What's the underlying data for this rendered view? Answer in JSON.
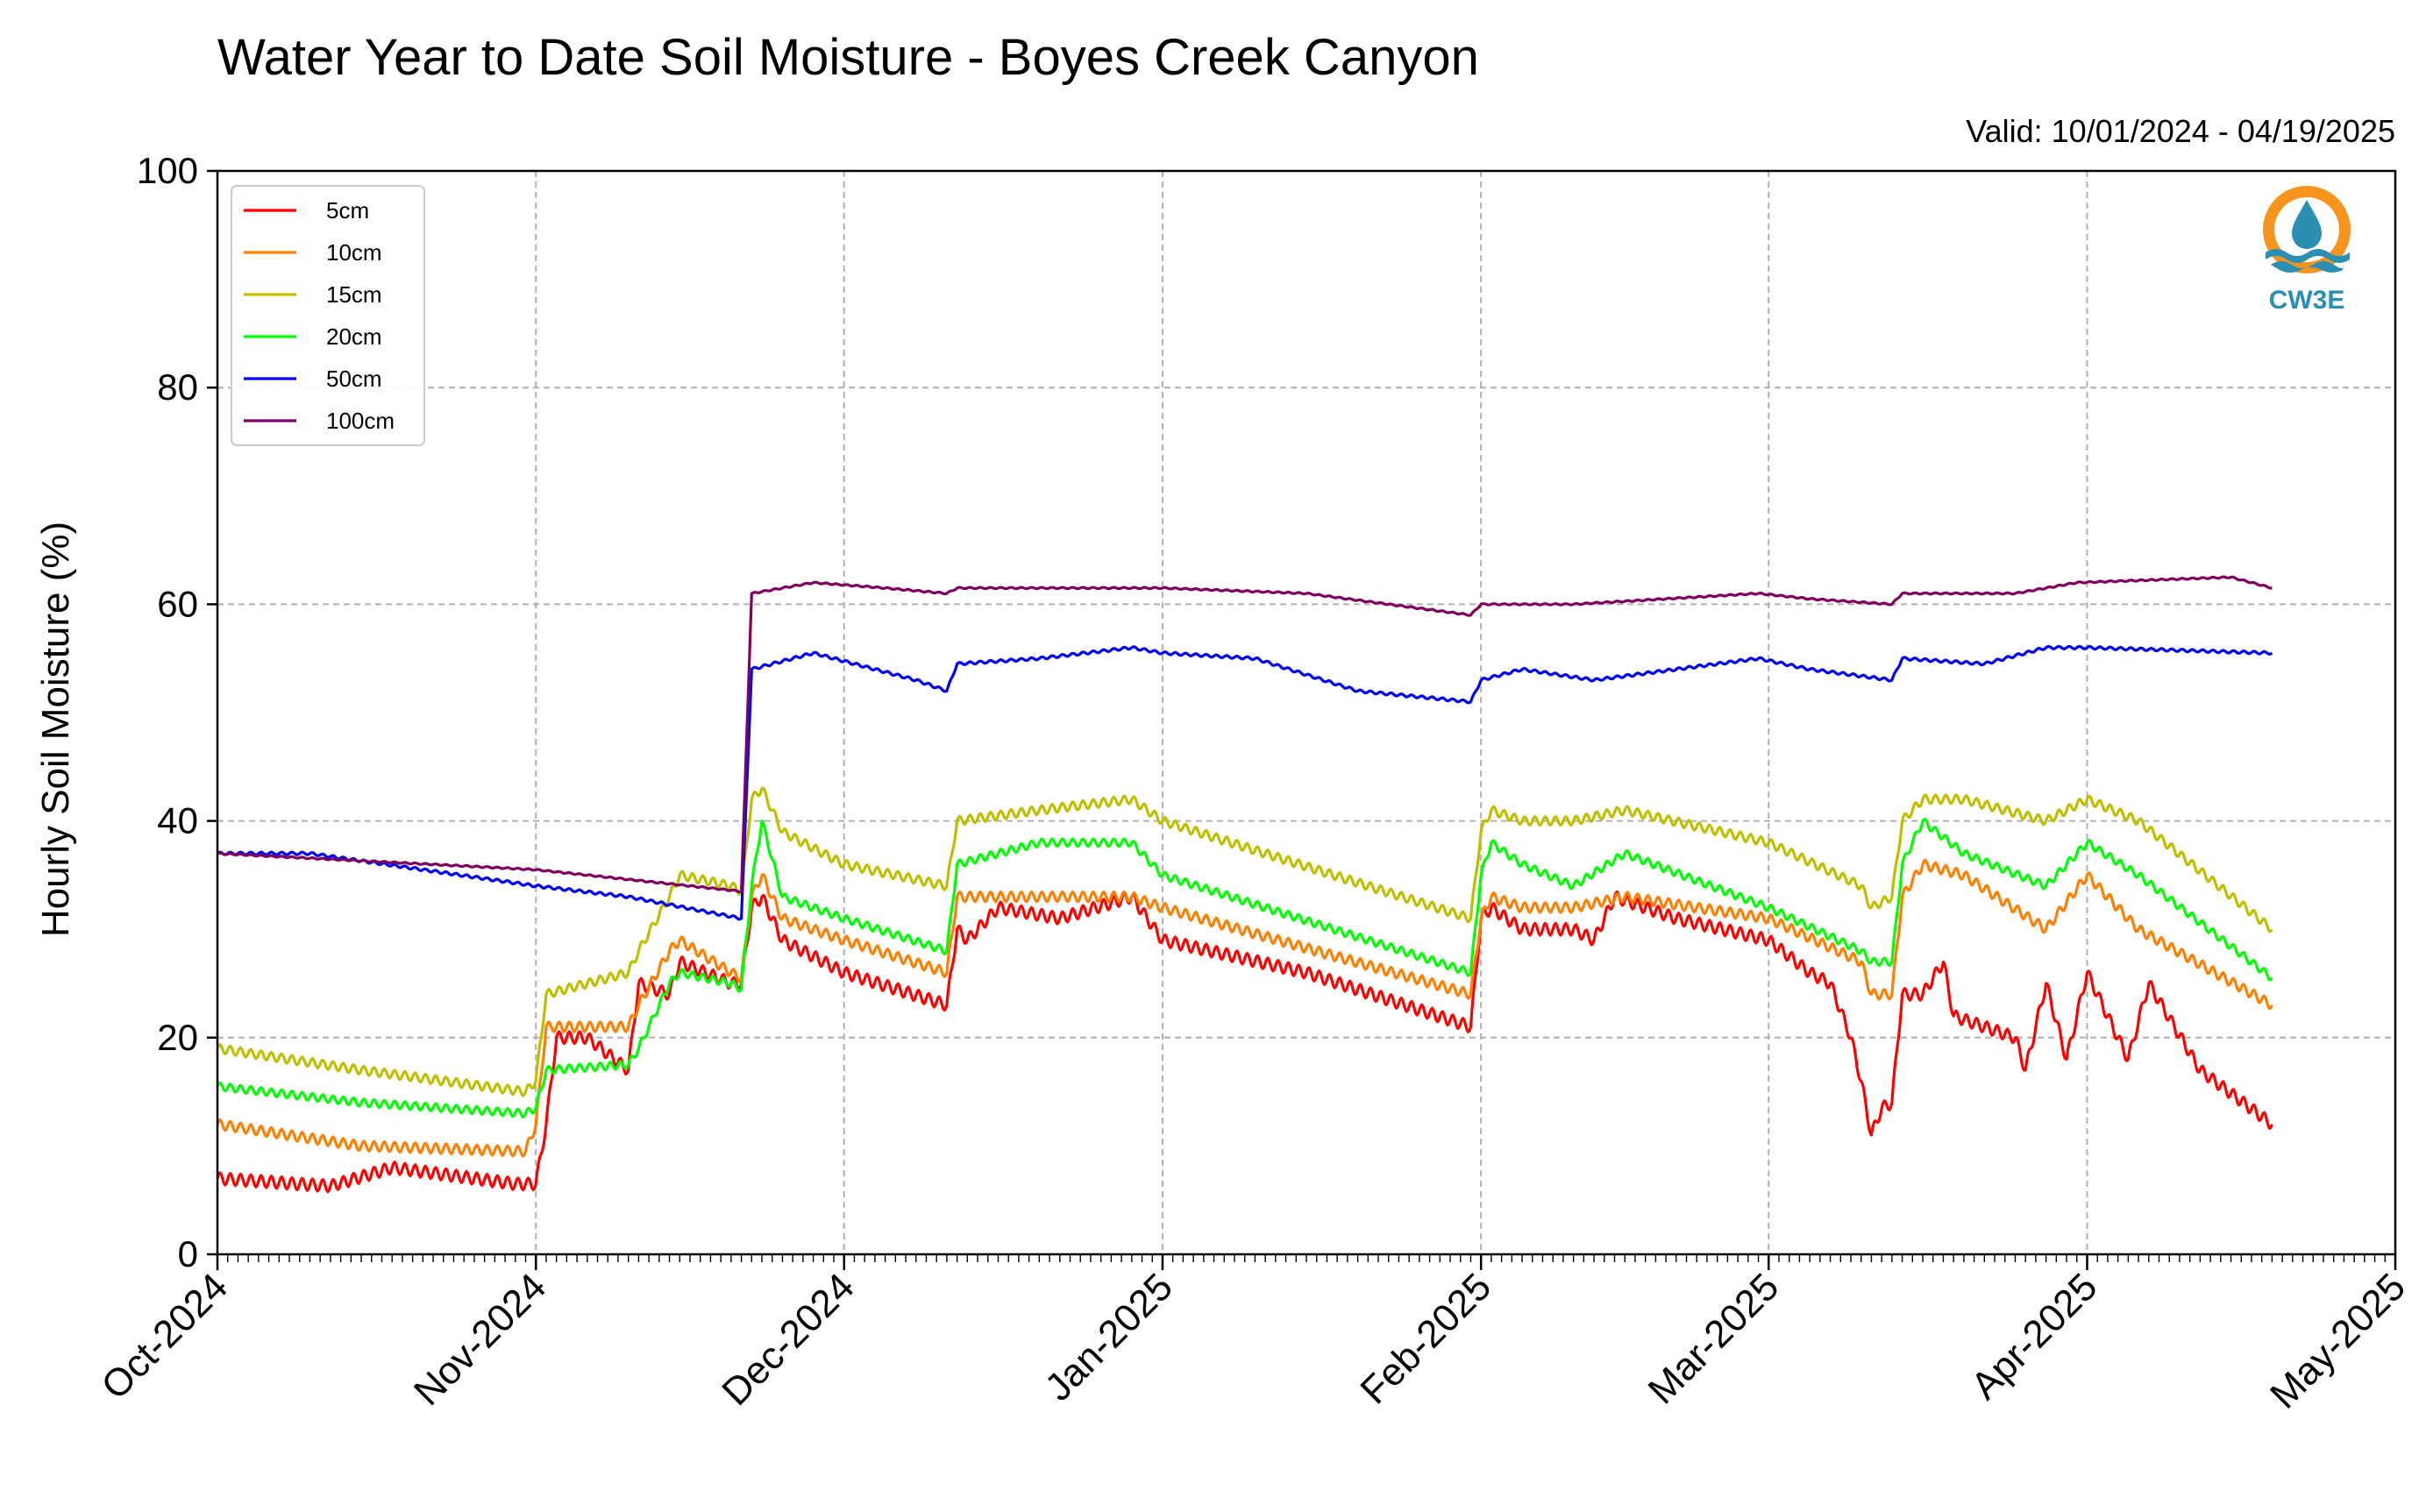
{
  "chart_data": {
    "type": "line",
    "title": "Water Year to Date Soil Moisture - Boyes Creek Canyon",
    "subtitle": "Valid: 10/01/2024 - 04/19/2025",
    "xlabel": "",
    "ylabel": "Hourly Soil Moisture (%)",
    "xlim": [
      "2024-10-01",
      "2025-05-01"
    ],
    "ylim": [
      0,
      100
    ],
    "yticks": [
      0,
      20,
      40,
      60,
      80,
      100
    ],
    "xticks": [
      {
        "date": "2024-10-01",
        "label": "Oct-2024"
      },
      {
        "date": "2024-11-01",
        "label": "Nov-2024"
      },
      {
        "date": "2024-12-01",
        "label": "Dec-2024"
      },
      {
        "date": "2025-01-01",
        "label": "Jan-2025"
      },
      {
        "date": "2025-02-01",
        "label": "Feb-2025"
      },
      {
        "date": "2025-03-01",
        "label": "Mar-2025"
      },
      {
        "date": "2025-04-01",
        "label": "Apr-2025"
      },
      {
        "date": "2025-05-01",
        "label": "May-2025"
      }
    ],
    "grid": true,
    "legend_position": "top-left",
    "series": [
      {
        "name": "5cm",
        "color": "#ff0000",
        "x": [
          "2024-10-01",
          "2024-10-12",
          "2024-10-18",
          "2024-10-30",
          "2024-11-01",
          "2024-11-02",
          "2024-11-03",
          "2024-11-06",
          "2024-11-10",
          "2024-11-11",
          "2024-11-14",
          "2024-11-15",
          "2024-11-20",
          "2024-11-21",
          "2024-11-22",
          "2024-11-23",
          "2024-11-25",
          "2024-12-01",
          "2024-12-11",
          "2024-12-12",
          "2024-12-13",
          "2024-12-16",
          "2024-12-22",
          "2024-12-29",
          "2025-01-01",
          "2025-01-15",
          "2025-01-31",
          "2025-02-01",
          "2025-02-02",
          "2025-02-05",
          "2025-02-10",
          "2025-02-12",
          "2025-02-14",
          "2025-02-20",
          "2025-03-01",
          "2025-03-05",
          "2025-03-07",
          "2025-03-09",
          "2025-03-10",
          "2025-03-11",
          "2025-03-12",
          "2025-03-13",
          "2025-03-14",
          "2025-03-16",
          "2025-03-18",
          "2025-03-19",
          "2025-03-25",
          "2025-03-26",
          "2025-03-28",
          "2025-03-30",
          "2025-04-01",
          "2025-04-05",
          "2025-04-07",
          "2025-04-12",
          "2025-04-19"
        ],
        "values": [
          7,
          6.3,
          8,
          6.5,
          6.5,
          12,
          20,
          20,
          17,
          25,
          24,
          27,
          25,
          25,
          32,
          33,
          29,
          26,
          23,
          30,
          29,
          32,
          31,
          33,
          29,
          26,
          21,
          31,
          32,
          30,
          30,
          29,
          33,
          31,
          29,
          26,
          25,
          20,
          16,
          11,
          13.5,
          14,
          24,
          24,
          27,
          22,
          20,
          17,
          25,
          18,
          26,
          18,
          25,
          17,
          12
        ]
      },
      {
        "name": "10cm",
        "color": "#ff8000",
        "x": [
          "2024-10-01",
          "2024-10-15",
          "2024-10-31",
          "2024-11-01",
          "2024-11-02",
          "2024-11-10",
          "2024-11-11",
          "2024-11-14",
          "2024-11-15",
          "2024-11-20",
          "2024-11-21",
          "2024-11-22",
          "2024-11-23",
          "2024-11-25",
          "2024-12-01",
          "2024-12-11",
          "2024-12-12",
          "2024-12-20",
          "2024-12-29",
          "2025-01-01",
          "2025-01-31",
          "2025-02-01",
          "2025-02-02",
          "2025-02-05",
          "2025-02-10",
          "2025-02-15",
          "2025-03-01",
          "2025-03-10",
          "2025-03-11",
          "2025-03-13",
          "2025-03-14",
          "2025-03-16",
          "2025-03-20",
          "2025-03-28",
          "2025-04-01",
          "2025-04-06",
          "2025-04-19"
        ],
        "values": [
          12,
          10,
          9.5,
          12,
          21,
          21,
          23,
          28,
          29,
          26,
          25.5,
          33,
          35,
          31,
          29,
          26,
          33,
          33,
          33,
          32,
          24,
          31,
          33,
          32,
          32,
          33,
          31,
          27,
          24,
          24,
          33,
          36,
          35,
          30,
          35,
          30,
          23
        ]
      },
      {
        "name": "15cm",
        "color": "#bfbf00",
        "x": [
          "2024-10-01",
          "2024-10-15",
          "2024-10-31",
          "2024-11-01",
          "2024-11-02",
          "2024-11-10",
          "2024-11-11",
          "2024-11-14",
          "2024-11-15",
          "2024-11-20",
          "2024-11-21",
          "2024-11-22",
          "2024-11-23",
          "2024-11-25",
          "2024-12-01",
          "2024-12-11",
          "2024-12-12",
          "2024-12-20",
          "2024-12-29",
          "2025-01-01",
          "2025-01-31",
          "2025-02-01",
          "2025-02-02",
          "2025-02-05",
          "2025-02-10",
          "2025-02-15",
          "2025-03-01",
          "2025-03-10",
          "2025-03-11",
          "2025-03-13",
          "2025-03-14",
          "2025-03-16",
          "2025-03-20",
          "2025-03-28",
          "2025-04-01",
          "2025-04-06",
          "2025-04-19"
        ],
        "values": [
          19,
          17,
          15,
          16,
          24,
          26,
          28,
          33,
          35,
          34,
          33.5,
          42,
          43,
          39,
          36,
          34,
          40,
          41,
          42,
          40,
          31,
          39,
          41,
          40,
          40,
          41,
          38,
          34,
          32,
          33,
          40,
          42,
          42,
          40,
          42,
          40,
          30
        ]
      },
      {
        "name": "20cm",
        "color": "#00ff00",
        "x": [
          "2024-10-01",
          "2024-10-15",
          "2024-10-31",
          "2024-11-01",
          "2024-11-02",
          "2024-11-10",
          "2024-11-11",
          "2024-11-14",
          "2024-11-15",
          "2024-11-20",
          "2024-11-21",
          "2024-11-22",
          "2024-11-23",
          "2024-11-25",
          "2024-12-01",
          "2024-12-11",
          "2024-12-12",
          "2024-12-20",
          "2024-12-29",
          "2025-01-01",
          "2025-01-31",
          "2025-02-01",
          "2025-02-02",
          "2025-02-05",
          "2025-02-10",
          "2025-02-15",
          "2025-03-01",
          "2025-03-10",
          "2025-03-11",
          "2025-03-13",
          "2025-03-14",
          "2025-03-16",
          "2025-03-20",
          "2025-03-28",
          "2025-04-01",
          "2025-04-06",
          "2025-04-19"
        ],
        "values": [
          15.5,
          14,
          13,
          13.5,
          17,
          17.5,
          19,
          25,
          26,
          25,
          24.5,
          34,
          40,
          33,
          31,
          28,
          36,
          38,
          38,
          35,
          26,
          35,
          38,
          36,
          34,
          37,
          32,
          28,
          27,
          27,
          36,
          40,
          37,
          34,
          38,
          35,
          25.5
        ]
      },
      {
        "name": "50cm",
        "color": "#0000ff",
        "x": [
          "2024-10-01",
          "2024-10-10",
          "2024-11-01",
          "2024-11-10",
          "2024-11-21",
          "2024-11-22",
          "2024-11-28",
          "2024-12-08",
          "2024-12-11",
          "2024-12-12",
          "2024-12-20",
          "2024-12-29",
          "2025-01-01",
          "2025-01-10",
          "2025-01-20",
          "2025-01-31",
          "2025-02-01",
          "2025-02-05",
          "2025-02-12",
          "2025-02-28",
          "2025-03-05",
          "2025-03-13",
          "2025-03-14",
          "2025-03-22",
          "2025-03-28",
          "2025-04-01",
          "2025-04-19"
        ],
        "values": [
          37,
          37,
          34,
          33,
          31,
          54,
          55.5,
          53,
          52,
          54.5,
          55,
          56,
          55.5,
          55,
          52,
          51,
          53,
          54,
          53,
          55,
          54,
          53,
          55,
          54.5,
          56,
          56,
          55.5
        ]
      },
      {
        "name": "100cm",
        "color": "#800060",
        "x": [
          "2024-10-01",
          "2024-11-01",
          "2024-11-21",
          "2024-11-22",
          "2024-11-28",
          "2024-12-05",
          "2024-12-11",
          "2024-12-12",
          "2024-12-22",
          "2025-01-01",
          "2025-01-15",
          "2025-01-31",
          "2025-02-01",
          "2025-02-10",
          "2025-02-28",
          "2025-03-05",
          "2025-03-13",
          "2025-03-14",
          "2025-03-25",
          "2025-03-31",
          "2025-04-15",
          "2025-04-19"
        ],
        "values": [
          37,
          35.5,
          33.5,
          61,
          62,
          61.5,
          61,
          61.5,
          61.5,
          61.5,
          61,
          59,
          60,
          60,
          61,
          60.5,
          60,
          61,
          61,
          62,
          62.5,
          61.5
        ]
      }
    ]
  },
  "logo": {
    "text": "CW3E",
    "ring_color": "#f7941d",
    "wave_color": "#2b8fb3"
  }
}
